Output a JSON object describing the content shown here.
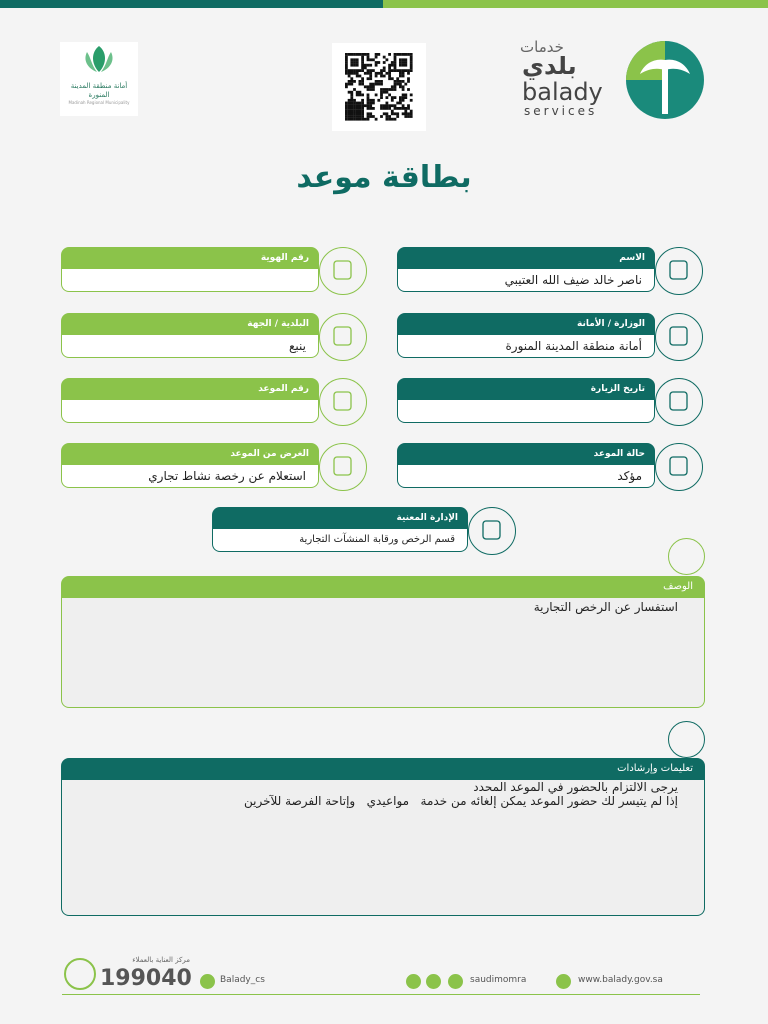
{
  "header": {
    "balady_arabic_small": "خدمات",
    "balady_arabic": "بلدي",
    "balady_en": "balady",
    "services_en": "services",
    "municipality_ar": "أمانة منطقة المدينة المنورة",
    "municipality_en": "Madinah Regional Municipality"
  },
  "title": "بطاقة موعد",
  "fields": [
    {
      "label": "الاسم",
      "value": "ناصر خالد ضيف الله العتيبي"
    },
    {
      "label": "رقم الهوية"
    },
    {
      "label": "الوزارة / الأمانة",
      "value": "أمانة منطقة المدينة المنورة"
    },
    {
      "label": "البلدية / الجهة",
      "value": "ينبع"
    },
    {
      "label": "تاريخ الزيارة"
    },
    {
      "label": "رقم الموعد"
    },
    {
      "label": "حالة الموعد",
      "value": "مؤكد"
    },
    {
      "label": "الغرض من الموعد",
      "value": "استعلام عن رخصة نشاط تجاري"
    },
    {
      "label": "الإدارة المعنية",
      "value": "قسم الرخص ورقابة المنشآت التجارية"
    }
  ],
  "description": {
    "label": "الوصف",
    "text": "استفسار عن الرخص التجارية"
  },
  "instructions": {
    "label": "تعليمات وإرشادات",
    "lines": [
      "يرجى الالتزام بالحضور في الموعد المحدد",
      "إذا لم يتيسر لك حضور الموعد يمكن إلغائه من خدمة   مواعيدي   وإتاحة الفرصة للآخرين"
    ]
  },
  "footer": {
    "care_center": "مركز العناية بالعملاء",
    "phone": "199040",
    "twitter_cs": "Balady_cs",
    "social": "saudimomra",
    "website": "www.balady.gov.sa"
  }
}
